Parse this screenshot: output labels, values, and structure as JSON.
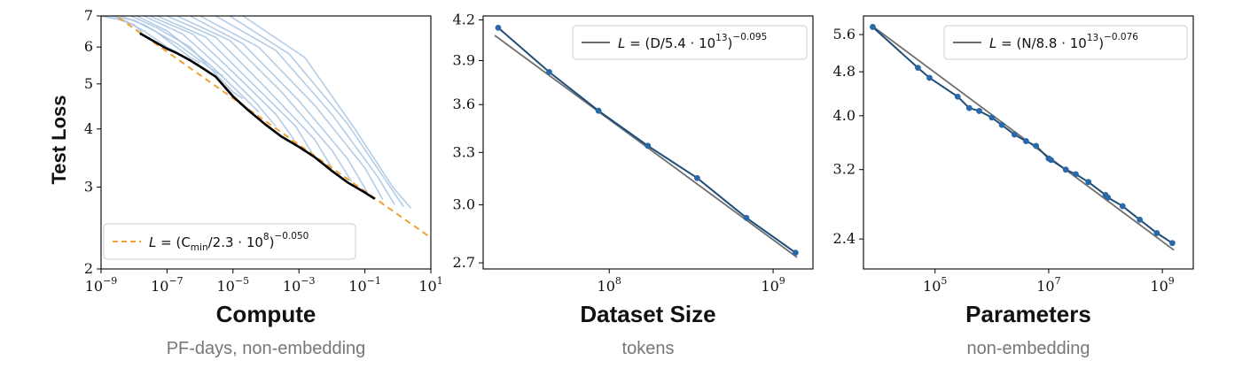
{
  "colors": {
    "run_curves": "#a7c4e2",
    "frontier": "#000000",
    "compute_fit": "#f0a030",
    "data_line": "#1f4e79",
    "data_fit": "#6f6f6f",
    "points": "#2a68a8"
  },
  "chart_data": [
    {
      "type": "line",
      "ylabel": "Test Loss",
      "xlabel": "Compute",
      "xsub": "PF-days, non-embedding",
      "x_scale": "log",
      "y_scale": "log",
      "xlim": [
        1e-09,
        10
      ],
      "ylim": [
        2,
        7
      ],
      "x_ticks": [
        {
          "base": "10",
          "exp": "−9",
          "value": 1e-09
        },
        {
          "base": "10",
          "exp": "−7",
          "value": 1e-07
        },
        {
          "base": "10",
          "exp": "−5",
          "value": 1e-05
        },
        {
          "base": "10",
          "exp": "−3",
          "value": 0.001
        },
        {
          "base": "10",
          "exp": "−1",
          "value": 0.1
        },
        {
          "base": "10",
          "exp": "1",
          "value": 10
        }
      ],
      "y_ticks": [
        {
          "label": "2",
          "value": 2
        },
        {
          "label": "3",
          "value": 3
        },
        {
          "label": "4",
          "value": 4
        },
        {
          "label": "5",
          "value": 5
        },
        {
          "label": "6",
          "value": 6
        },
        {
          "label": "7",
          "value": 7
        }
      ],
      "legend": {
        "location": "lower left",
        "entries": [
          {
            "style": "dashed",
            "color": "#f0a030",
            "label_parts": [
              "L",
              " = (C",
              "min",
              "/2.3 · 10",
              "8",
              ")",
              "−0.050"
            ]
          }
        ]
      },
      "fit": {
        "type": "power_law",
        "scale": 230000000.0,
        "exponent": -0.05
      },
      "frontier": {
        "x": [
          1.5e-08,
          2e-08,
          5e-08,
          1e-07,
          2e-07,
          5e-07,
          1e-06,
          3e-06,
          1e-05,
          3e-05,
          0.0001,
          0.0003,
          0.001,
          0.003,
          0.01,
          0.03,
          0.1,
          0.2
        ],
        "y": [
          6.42,
          6.35,
          6.12,
          5.95,
          5.82,
          5.62,
          5.45,
          5.18,
          4.7,
          4.38,
          4.08,
          3.85,
          3.66,
          3.48,
          3.25,
          3.07,
          2.92,
          2.83
        ]
      },
      "runs": [
        {
          "x": [
            1e-09,
            3e-09,
            1e-08,
            1.8e-08
          ],
          "y": [
            7.0,
            6.9,
            6.7,
            6.45
          ]
        },
        {
          "x": [
            1e-09,
            5e-09,
            2e-08,
            1e-07,
            2e-07
          ],
          "y": [
            7.0,
            6.85,
            6.5,
            6.0,
            5.85
          ]
        },
        {
          "x": [
            2e-09,
            1e-08,
            5e-08,
            5e-07,
            1e-06
          ],
          "y": [
            7.0,
            6.85,
            6.45,
            5.7,
            5.55
          ]
        },
        {
          "x": [
            4e-09,
            2e-08,
            2e-07,
            3e-06,
            5e-06
          ],
          "y": [
            7.0,
            6.7,
            6.1,
            5.3,
            5.2
          ]
        },
        {
          "x": [
            8e-09,
            5e-08,
            5e-07,
            1e-05,
            2e-05
          ],
          "y": [
            7.0,
            6.6,
            6.0,
            4.8,
            4.65
          ]
        },
        {
          "x": [
            1.2e-08,
            1e-07,
            2e-06,
            2e-05,
            6e-05
          ],
          "y": [
            7.0,
            6.5,
            5.5,
            4.7,
            4.35
          ]
        },
        {
          "x": [
            2e-08,
            3e-07,
            5e-06,
            5e-05,
            0.0002
          ],
          "y": [
            7.0,
            6.4,
            5.35,
            4.55,
            4.05
          ]
        },
        {
          "x": [
            3e-08,
            6e-07,
            1e-05,
            0.0002,
            0.0007
          ],
          "y": [
            7.0,
            6.4,
            5.3,
            4.3,
            3.8
          ]
        },
        {
          "x": [
            5e-08,
            1.5e-06,
            3e-05,
            0.0008,
            0.0025
          ],
          "y": [
            7.0,
            6.3,
            5.1,
            4.05,
            3.55
          ]
        },
        {
          "x": [
            1e-07,
            3e-06,
            0.0001,
            0.003,
            0.01
          ],
          "y": [
            7.0,
            6.3,
            4.9,
            3.8,
            3.3
          ]
        },
        {
          "x": [
            2e-07,
            8e-06,
            0.0003,
            0.01,
            0.04
          ],
          "y": [
            7.0,
            6.2,
            4.8,
            3.6,
            3.08
          ]
        },
        {
          "x": [
            5e-07,
            2e-05,
            0.001,
            0.03,
            0.12
          ],
          "y": [
            7.0,
            6.1,
            4.6,
            3.45,
            2.92
          ]
        },
        {
          "x": [
            1e-06,
            6e-05,
            0.003,
            0.1,
            0.35
          ],
          "y": [
            7.0,
            6.0,
            4.5,
            3.3,
            2.82
          ]
        },
        {
          "x": [
            3e-06,
            0.0002,
            0.01,
            0.25,
            0.8
          ],
          "y": [
            7.0,
            5.9,
            4.3,
            3.15,
            2.75
          ]
        },
        {
          "x": [
            8e-06,
            0.0005,
            0.03,
            0.5,
            1.5
          ],
          "y": [
            7.0,
            5.8,
            4.1,
            3.05,
            2.72
          ]
        },
        {
          "x": [
            2e-05,
            0.0015,
            0.05,
            0.7,
            2.5
          ],
          "y": [
            7.0,
            5.7,
            4.0,
            3.0,
            2.7
          ]
        }
      ]
    },
    {
      "type": "line",
      "xlabel": "Dataset Size",
      "xsub": "tokens",
      "x_scale": "log",
      "y_scale": "log",
      "xlim": [
        17000000.0,
        1750000000.0
      ],
      "ylim": [
        2.67,
        4.23
      ],
      "x_ticks": [
        {
          "base": "10",
          "exp": "8",
          "value": 100000000.0
        },
        {
          "base": "10",
          "exp": "9",
          "value": 1000000000.0
        }
      ],
      "y_ticks": [
        {
          "label": "2.7",
          "value": 2.7
        },
        {
          "label": "3.0",
          "value": 3.0
        },
        {
          "label": "3.3",
          "value": 3.3
        },
        {
          "label": "3.6",
          "value": 3.6
        },
        {
          "label": "3.9",
          "value": 3.9
        },
        {
          "label": "4.2",
          "value": 4.2
        }
      ],
      "legend": {
        "location": "upper right",
        "entries": [
          {
            "style": "solid",
            "color": "#6f6f6f",
            "label_parts": [
              "L",
              " = (D/5.4 · 10",
              "13",
              ")",
              "−0.095"
            ]
          }
        ]
      },
      "fit": {
        "type": "power_law",
        "scale": 54000000000000.0,
        "exponent": -0.095,
        "x_range": [
          20000000.0,
          1400000000.0
        ]
      },
      "series": [
        {
          "x": [
            21000000.0,
            43000000.0,
            86000000.0,
            172000000.0,
            344000000.0,
            687000000.0,
            1370000000.0
          ],
          "y": [
            4.14,
            3.82,
            3.56,
            3.34,
            3.15,
            2.93,
            2.75
          ]
        }
      ]
    },
    {
      "type": "line",
      "xlabel": "Parameters",
      "xsub": "non-embedding",
      "x_scale": "log",
      "y_scale": "log",
      "xlim": [
        5500.0,
        3500000000.0
      ],
      "ylim": [
        2.12,
        6.05
      ],
      "x_ticks": [
        {
          "base": "10",
          "exp": "5",
          "value": 100000.0
        },
        {
          "base": "10",
          "exp": "7",
          "value": 10000000.0
        },
        {
          "base": "10",
          "exp": "9",
          "value": 1000000000.0
        }
      ],
      "y_ticks": [
        {
          "label": "2.4",
          "value": 2.4
        },
        {
          "label": "3.2",
          "value": 3.2
        },
        {
          "label": "4.0",
          "value": 4.0
        },
        {
          "label": "4.8",
          "value": 4.8
        },
        {
          "label": "5.6",
          "value": 5.6
        }
      ],
      "legend": {
        "location": "upper right",
        "entries": [
          {
            "style": "solid",
            "color": "#6f6f6f",
            "label_parts": [
              "L",
              " = (N/8.8 · 10",
              "13",
              ")",
              "−0.076"
            ]
          }
        ]
      },
      "fit": {
        "type": "power_law",
        "scale": 88000000000000.0,
        "exponent": -0.076,
        "x_range": [
          8000.0,
          1600000000.0
        ]
      },
      "series": [
        {
          "x": [
            8000.0,
            50000.0,
            80000.0,
            250000.0,
            400000.0,
            600000.0,
            1000000.0,
            1500000.0,
            2500000.0,
            4000000.0,
            6000000.0,
            10000000.0,
            11000000.0,
            20000000.0,
            30000000.0,
            50000000.0,
            100000000.0,
            110000000.0,
            200000000.0,
            400000000.0,
            800000000.0,
            1500000000.0
          ],
          "y": [
            5.78,
            4.88,
            4.68,
            4.33,
            4.13,
            4.08,
            3.97,
            3.85,
            3.7,
            3.6,
            3.53,
            3.35,
            3.33,
            3.2,
            3.14,
            3.04,
            2.88,
            2.85,
            2.75,
            2.6,
            2.46,
            2.36
          ]
        }
      ]
    }
  ]
}
